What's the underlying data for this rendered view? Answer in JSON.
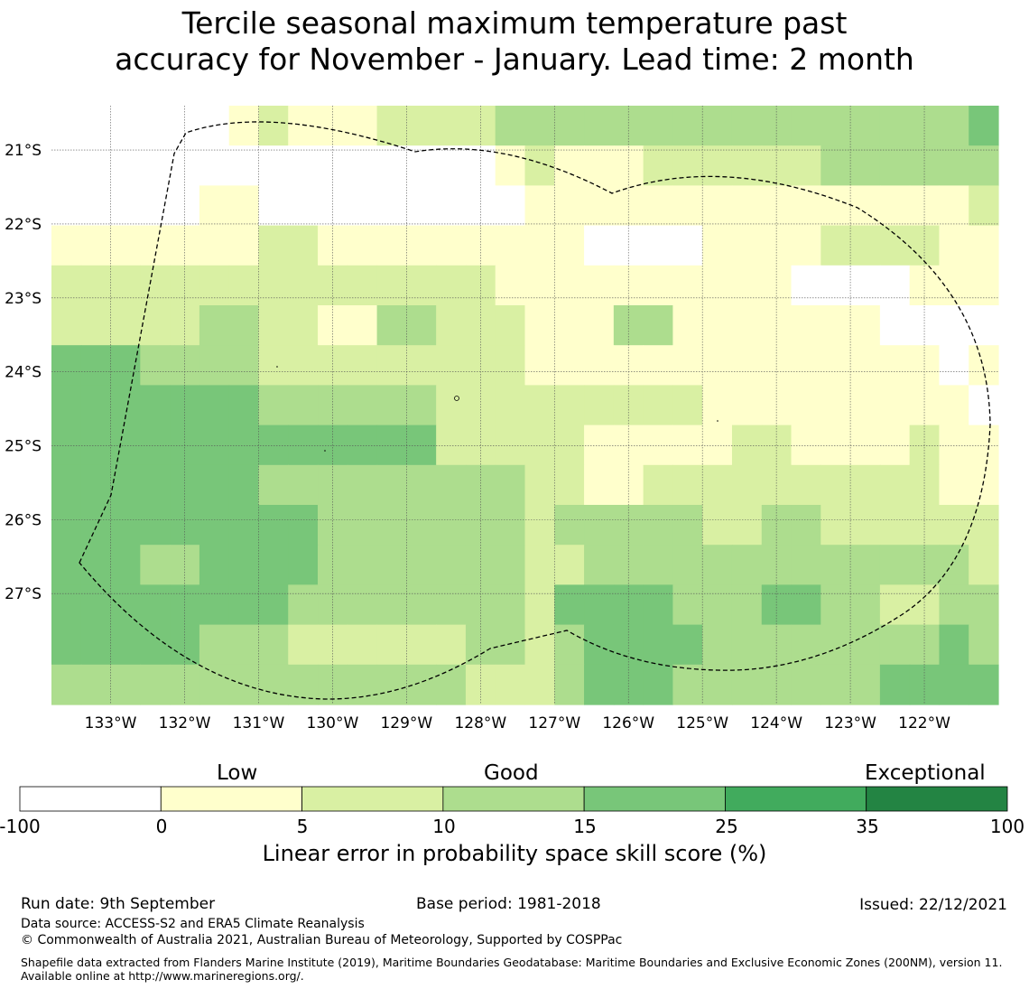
{
  "title_line1": "Tercile seasonal maximum temperature past",
  "title_line2": "accuracy for November - January. Lead time: 2 month",
  "map": {
    "lon_labels": [
      "133°W",
      "132°W",
      "131°W",
      "130°W",
      "129°W",
      "128°W",
      "127°W",
      "126°W",
      "125°W",
      "124°W",
      "123°W",
      "122°W"
    ],
    "lat_labels": [
      "21°S",
      "22°S",
      "23°S",
      "24°S",
      "25°S",
      "26°S",
      "27°S"
    ],
    "grid_lon_range": [
      -133.8,
      -121.0
    ],
    "grid_lat_range": [
      -20.4,
      -28.5
    ],
    "category_colors": [
      "#ffffff",
      "#ffffcc",
      "#d9f0a3",
      "#addd8e",
      "#78c679",
      "#41ab5d",
      "#238443"
    ],
    "cells": [
      [
        null,
        null,
        null,
        null,
        null,
        null,
        1,
        2,
        1,
        1,
        1,
        2,
        2,
        2,
        2,
        3,
        3,
        3,
        3,
        3,
        3,
        3,
        3,
        3,
        3,
        3,
        3,
        3,
        3,
        3,
        3,
        4
      ],
      [
        0,
        0,
        0,
        0,
        0,
        0,
        0,
        0,
        0,
        0,
        0,
        0,
        0,
        0,
        0,
        1,
        2,
        1,
        1,
        1,
        2,
        2,
        2,
        2,
        2,
        2,
        3,
        3,
        3,
        3,
        3,
        3
      ],
      [
        0,
        0,
        0,
        0,
        0,
        1,
        1,
        0,
        0,
        0,
        0,
        0,
        0,
        0,
        0,
        0,
        1,
        1,
        1,
        1,
        1,
        1,
        1,
        1,
        1,
        1,
        1,
        1,
        1,
        1,
        1,
        2
      ],
      [
        1,
        1,
        1,
        1,
        1,
        1,
        1,
        2,
        2,
        1,
        1,
        1,
        1,
        1,
        1,
        1,
        1,
        1,
        0,
        0,
        0,
        0,
        1,
        1,
        1,
        1,
        2,
        2,
        2,
        2,
        1,
        1
      ],
      [
        2,
        2,
        2,
        2,
        2,
        2,
        2,
        2,
        2,
        2,
        2,
        2,
        2,
        2,
        2,
        1,
        1,
        1,
        1,
        1,
        1,
        1,
        1,
        1,
        1,
        0,
        0,
        0,
        0,
        1,
        1,
        1
      ],
      [
        2,
        2,
        2,
        2,
        2,
        3,
        3,
        2,
        2,
        1,
        1,
        3,
        3,
        2,
        2,
        2,
        1,
        1,
        1,
        3,
        3,
        1,
        1,
        1,
        1,
        1,
        1,
        1,
        0,
        0,
        0,
        0
      ],
      [
        4,
        4,
        4,
        3,
        3,
        3,
        3,
        2,
        2,
        2,
        2,
        2,
        2,
        2,
        2,
        2,
        1,
        1,
        1,
        1,
        1,
        1,
        1,
        1,
        1,
        1,
        1,
        1,
        1,
        1,
        0,
        1
      ],
      [
        4,
        4,
        4,
        4,
        4,
        4,
        4,
        3,
        3,
        3,
        3,
        3,
        3,
        2,
        2,
        2,
        2,
        2,
        2,
        2,
        2,
        2,
        1,
        1,
        1,
        1,
        1,
        1,
        1,
        1,
        1,
        0
      ],
      [
        4,
        4,
        4,
        4,
        4,
        4,
        4,
        4,
        4,
        4,
        4,
        4,
        4,
        2,
        2,
        2,
        2,
        2,
        1,
        1,
        1,
        1,
        1,
        2,
        2,
        1,
        1,
        1,
        1,
        2,
        1,
        1
      ],
      [
        4,
        4,
        4,
        4,
        4,
        4,
        4,
        3,
        3,
        3,
        3,
        3,
        3,
        3,
        3,
        3,
        2,
        2,
        1,
        1,
        2,
        2,
        2,
        2,
        2,
        2,
        2,
        2,
        2,
        2,
        1,
        1
      ],
      [
        4,
        4,
        4,
        4,
        4,
        4,
        4,
        4,
        4,
        3,
        3,
        3,
        3,
        3,
        3,
        3,
        2,
        3,
        3,
        3,
        3,
        3,
        2,
        2,
        3,
        3,
        2,
        2,
        2,
        2,
        2,
        2
      ],
      [
        4,
        4,
        4,
        3,
        3,
        4,
        4,
        4,
        4,
        3,
        3,
        3,
        3,
        3,
        3,
        3,
        2,
        2,
        3,
        3,
        3,
        3,
        3,
        3,
        3,
        3,
        3,
        3,
        3,
        3,
        3,
        2
      ],
      [
        4,
        4,
        4,
        4,
        4,
        4,
        4,
        4,
        3,
        3,
        3,
        3,
        3,
        3,
        3,
        3,
        2,
        4,
        4,
        4,
        4,
        3,
        3,
        3,
        4,
        4,
        3,
        3,
        2,
        2,
        3,
        3
      ],
      [
        4,
        4,
        4,
        4,
        4,
        3,
        3,
        3,
        2,
        2,
        2,
        2,
        2,
        2,
        3,
        3,
        2,
        3,
        4,
        4,
        4,
        4,
        3,
        3,
        3,
        3,
        3,
        3,
        3,
        3,
        4,
        3
      ],
      [
        3,
        3,
        3,
        3,
        3,
        3,
        3,
        3,
        3,
        3,
        3,
        3,
        3,
        3,
        2,
        2,
        2,
        3,
        4,
        4,
        4,
        3,
        3,
        3,
        3,
        3,
        3,
        3,
        4,
        4,
        4,
        4
      ]
    ]
  },
  "colorbar": {
    "words": [
      "Low",
      "Good",
      "Exceptional"
    ],
    "ticks": [
      "-100",
      "0",
      "5",
      "10",
      "15",
      "25",
      "35",
      "100"
    ],
    "label": "Linear error in probability space skill score (%)"
  },
  "footer": {
    "run_date": "Run date: 9th September",
    "base_period": "Base period: 1981-2018",
    "issued": "Issued: 22/12/2021",
    "data_source": "Data source: ACCESS-S2 and ERA5 Climate Reanalysis",
    "copyright": "© Commonwealth of Australia 2021, Australian Bureau of Meteorology, Supported by COSPPac",
    "shapefile": "Shapefile data extracted from Flanders Marine Institute (2019), Maritime Boundaries Geodatabase: Maritime Boundaries and Exclusive Economic Zones (200NM), version 11. Available online at http://www.marineregions.org/."
  }
}
